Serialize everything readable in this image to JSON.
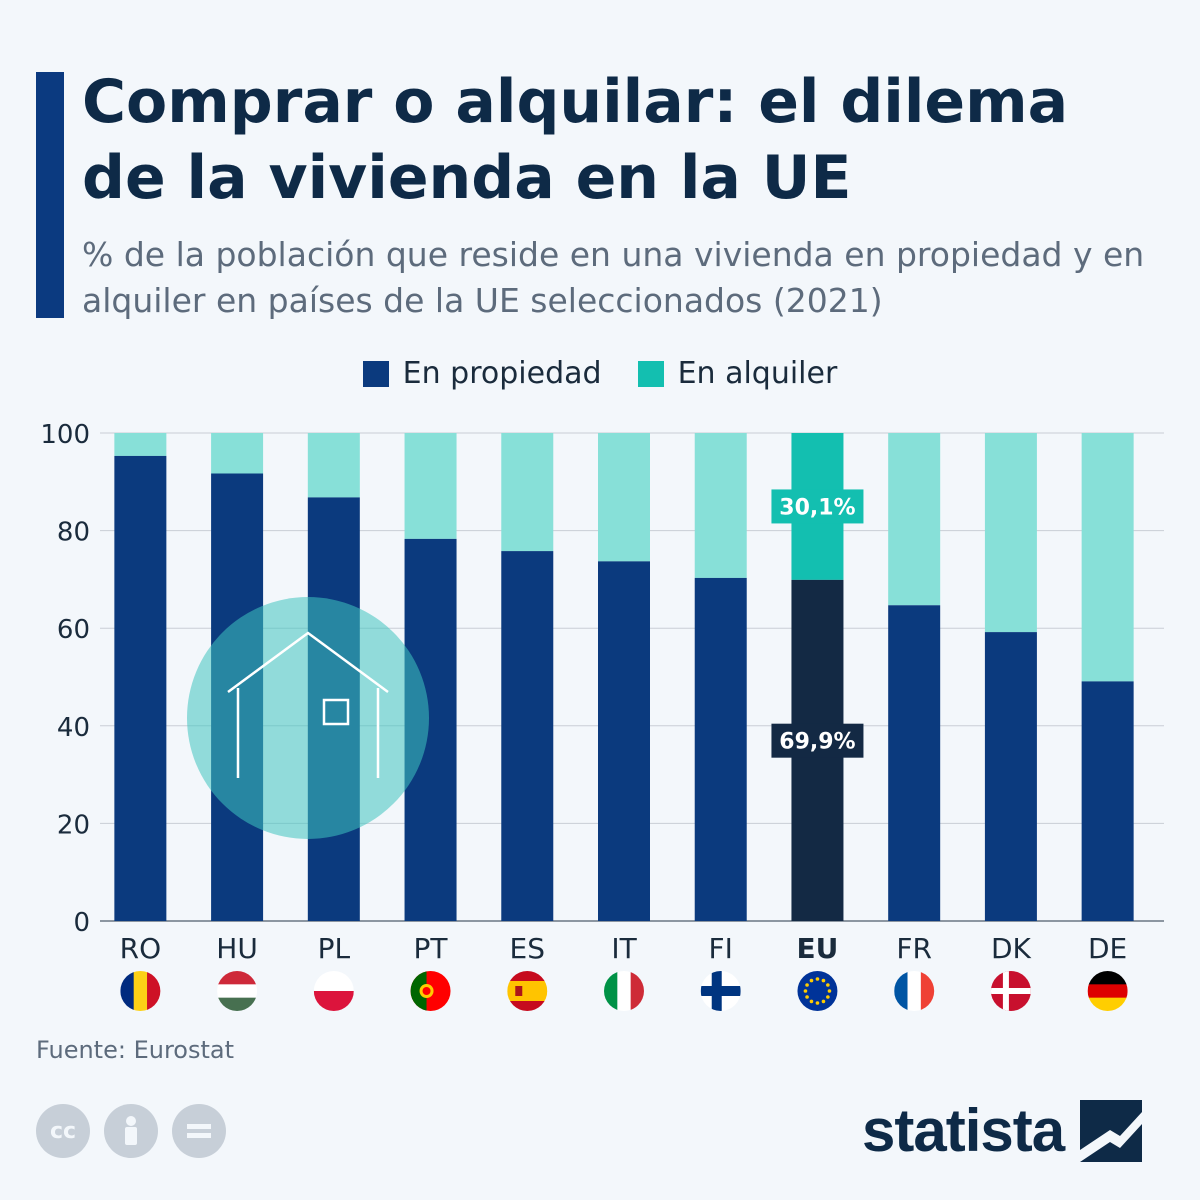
{
  "title": "Comprar o alquilar: el dilema de la vivienda en la UE",
  "subtitle": "% de la población que reside en una vivienda en propiedad y en alquiler en países de la UE seleccionados (2021)",
  "legend": {
    "owned": "En propiedad",
    "rented": "En alquiler"
  },
  "colors": {
    "owned": "#0b3a7e",
    "rented": "#87e0d8",
    "eu_owned": "#132944",
    "eu_rented": "#13bfb0",
    "grid": "#c9ced6",
    "accent": "#0b3a80"
  },
  "source": "Fuente: Eurostat",
  "brand": "statista",
  "icons": [
    "cc-license-icon",
    "attribution-icon",
    "no-derivatives-icon",
    "statista-logo-icon",
    "house-illustration-icon"
  ],
  "chart_data": {
    "type": "bar",
    "stacked": true,
    "categories": [
      "RO",
      "HU",
      "PL",
      "PT",
      "ES",
      "IT",
      "FI",
      "EU",
      "FR",
      "DK",
      "DE"
    ],
    "highlight": "EU",
    "series": [
      {
        "name": "En propiedad",
        "values": [
          95.3,
          91.7,
          86.8,
          78.3,
          75.8,
          73.7,
          70.3,
          69.9,
          64.7,
          59.2,
          49.1
        ]
      },
      {
        "name": "En alquiler",
        "values": [
          4.7,
          8.3,
          13.2,
          21.7,
          24.2,
          26.3,
          29.7,
          30.1,
          35.3,
          40.8,
          50.9
        ]
      }
    ],
    "data_labels": {
      "EU": {
        "owned": "69,9%",
        "rented": "30,1%"
      }
    },
    "yticks": [
      0,
      20,
      40,
      60,
      80,
      100
    ],
    "ylim": [
      0,
      100
    ],
    "grid": true,
    "legend_position": "top-center"
  }
}
